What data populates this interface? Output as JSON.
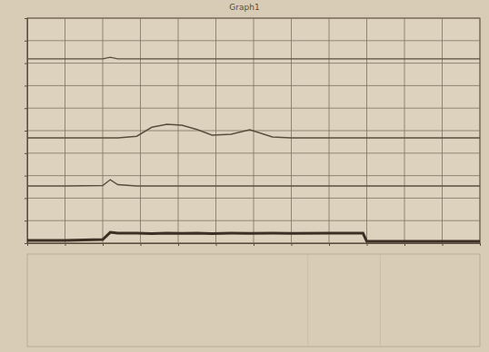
{
  "chart_data": {
    "type": "line",
    "title": "Graph1",
    "x": [
      0,
      1,
      2,
      2.2,
      2.4,
      2.9,
      3.3,
      3.7,
      4.1,
      4.5,
      4.9,
      5.4,
      5.9,
      6.5,
      7,
      8,
      8.9,
      9.0,
      10,
      11,
      12
    ],
    "series": [
      {
        "color": "#5b4d3e",
        "values": [
          81.9,
          81.9,
          81.9,
          82.6,
          81.9,
          81.9,
          81.9,
          81.9,
          81.9,
          81.9,
          81.9,
          81.9,
          81.9,
          81.9,
          81.9,
          81.9,
          81.9,
          81.9,
          81.9,
          81.9,
          81.9
        ]
      },
      {
        "color": "#5b4d3e",
        "values": [
          46.8,
          46.8,
          46.8,
          46.8,
          46.8,
          47.5,
          51.5,
          52.8,
          52.4,
          50.5,
          48.0,
          48.4,
          50.4,
          47.2,
          46.8,
          46.8,
          46.8,
          46.8,
          46.8,
          46.8,
          46.8
        ]
      },
      {
        "color": "#5b4d3e",
        "values": [
          25.4,
          25.4,
          25.6,
          28.2,
          26.0,
          25.4,
          25.4,
          25.4,
          25.4,
          25.4,
          25.4,
          25.4,
          25.4,
          25.4,
          25.4,
          25.4,
          25.4,
          25.4,
          25.4,
          25.4,
          25.4
        ]
      },
      {
        "color": "#3e2f24",
        "values": [
          1.2,
          1.2,
          1.6,
          4.8,
          4.4,
          4.4,
          4.2,
          4.4,
          4.3,
          4.4,
          4.2,
          4.4,
          4.3,
          4.4,
          4.3,
          4.4,
          4.4,
          0.8,
          0.8,
          0.8,
          0.8
        ]
      }
    ],
    "xlim": [
      0,
      12
    ],
    "xticks": [
      0,
      1,
      2,
      3,
      4,
      5,
      6,
      7,
      8,
      9,
      10,
      11,
      12
    ],
    "ylim": [
      0,
      100
    ],
    "yticks": [
      0,
      10,
      20,
      30,
      40,
      50,
      60,
      70,
      80,
      90,
      100
    ],
    "grid": true,
    "tick_labels": false
  }
}
